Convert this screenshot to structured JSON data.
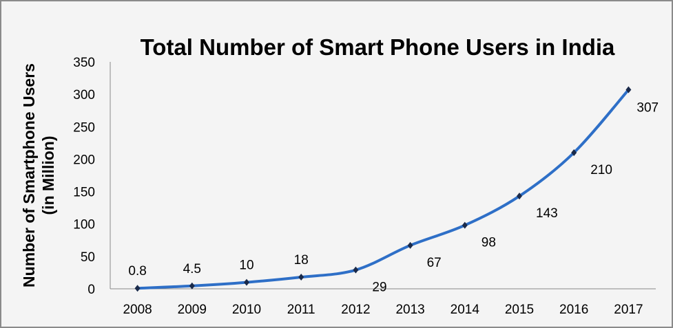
{
  "chart_data": {
    "type": "line",
    "title": "Total Number of Smart Phone Users in India",
    "xlabel": "",
    "ylabel": [
      "Number of Smartphone Users",
      "(in Million)"
    ],
    "categories": [
      "2008",
      "2009",
      "2010",
      "2011",
      "2012",
      "2013",
      "2014",
      "2015",
      "2016",
      "2017"
    ],
    "values": [
      0.8,
      4.5,
      10,
      18,
      29,
      67,
      98,
      143,
      210,
      307
    ],
    "data_labels": [
      "0.8",
      "4.5",
      "10",
      "18",
      "29",
      "67",
      "98",
      "143",
      "210",
      "307"
    ],
    "ylim": [
      0,
      350
    ],
    "yticks": [
      0,
      50,
      100,
      150,
      200,
      250,
      300,
      350
    ],
    "grid": false,
    "legend": "none",
    "line_color": "#2e6fc7",
    "marker_color": "#1a2a4a"
  }
}
